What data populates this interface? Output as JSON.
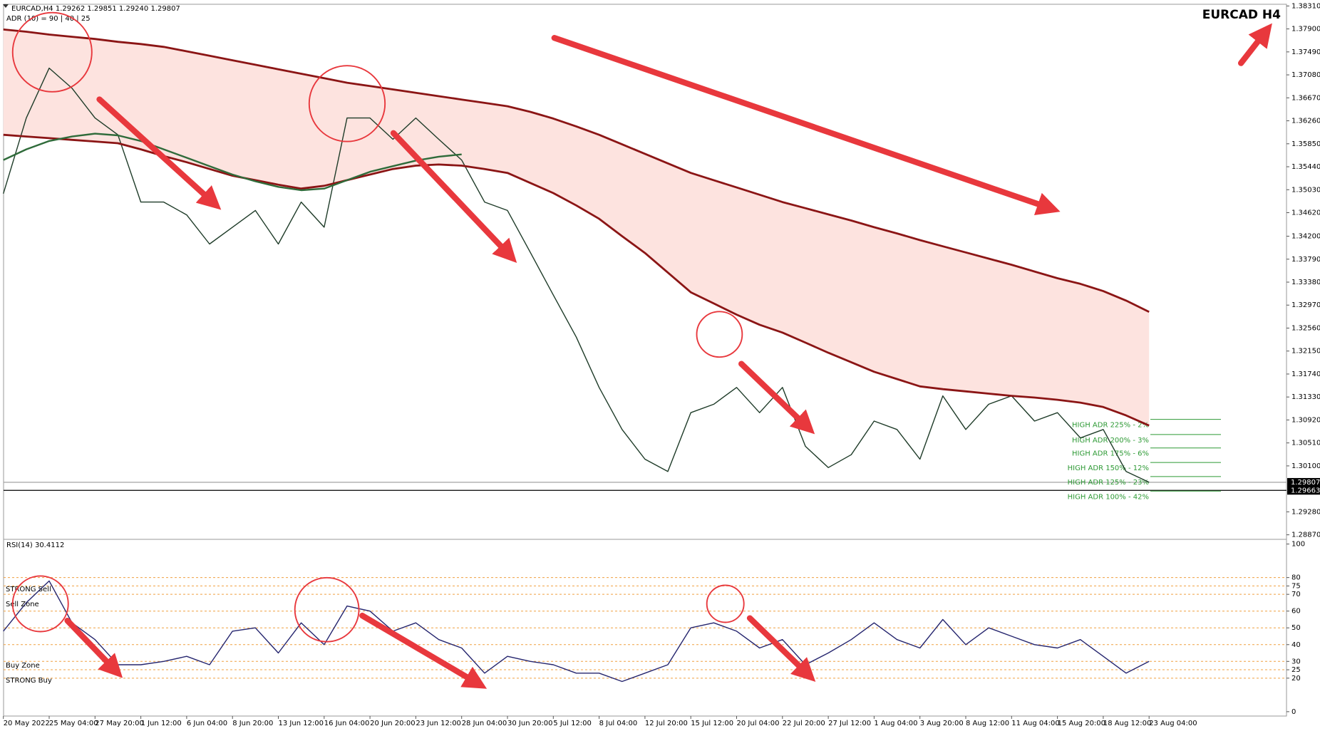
{
  "chart_data": [
    {
      "type": "line",
      "title": "EURCAD H4",
      "subtitle": "EURCAD,H4  1.29262 1.29851 1.29240 1.29807",
      "indicator_label": "ADR (10) = 90 | 40 | 25",
      "categories": [
        "20 May 2022",
        null,
        "25 May 04:00",
        null,
        "27 May 20:00",
        null,
        "1 Jun 12:00",
        null,
        "6 Jun 04:00",
        null,
        "8 Jun 20:00",
        null,
        "13 Jun 12:00",
        null,
        "16 Jun 04:00",
        null,
        "20 Jun 20:00",
        null,
        "23 Jun 12:00",
        null,
        "28 Jun 04:00",
        null,
        "30 Jun 20:00",
        null,
        "5 Jul 12:00",
        null,
        "8 Jul 04:00",
        null,
        "12 Jul 20:00",
        null,
        "15 Jul 12:00",
        null,
        "20 Jul 04:00",
        null,
        "22 Jul 20:00",
        null,
        "27 Jul 12:00",
        null,
        "1 Aug 04:00",
        null,
        "3 Aug 20:00",
        null,
        "8 Aug 12:00",
        null,
        "11 Aug 04:00",
        null,
        "15 Aug 20:00",
        null,
        "18 Aug 12:00",
        null,
        "23 Aug 04:00"
      ],
      "series": [
        {
          "color": "#1e3b28",
          "values": [
            1.3496,
            1.3631,
            1.372,
            1.3684,
            1.3631,
            1.3601,
            1.3481,
            1.3481,
            1.3458,
            1.3406,
            1.3436,
            1.3466,
            1.3406,
            1.3481,
            1.3436,
            1.3631,
            1.3631,
            1.3593,
            1.3631,
            1.3593,
            1.3556,
            1.3481,
            1.3466,
            1.3391,
            1.3315,
            1.324,
            1.315,
            1.3075,
            1.3022,
            1.3,
            1.3105,
            1.312,
            1.315,
            1.3105,
            1.315,
            1.3045,
            1.3007,
            1.303,
            1.309,
            1.3075,
            1.3022,
            1.3135,
            1.3075,
            1.312,
            1.3135,
            1.309,
            1.3105,
            1.306,
            1.3075,
            1.3,
            1.29807
          ]
        },
        {
          "color": "#8b1515",
          "values": [
            1.3789,
            1.3785,
            1.378,
            1.3776,
            1.3772,
            1.3767,
            1.3763,
            1.3758,
            1.375,
            1.3742,
            1.3734,
            1.3726,
            1.3718,
            1.371,
            1.3702,
            1.3694,
            1.3688,
            1.3682,
            1.3676,
            1.367,
            1.3664,
            1.3658,
            1.3652,
            1.3642,
            1.363,
            1.3616,
            1.3601,
            1.3584,
            1.3567,
            1.355,
            1.3533,
            1.352,
            1.3507,
            1.3494,
            1.3481,
            1.347,
            1.3459,
            1.3448,
            1.3436,
            1.3425,
            1.3413,
            1.3402,
            1.3391,
            1.338,
            1.3369,
            1.3357,
            1.3345,
            1.3335,
            1.3322,
            1.3305,
            1.3285
          ]
        },
        {
          "color": "#8b1515",
          "values": [
            1.3601,
            1.3598,
            1.3595,
            1.3592,
            1.3589,
            1.3586,
            1.3575,
            1.3563,
            1.3552,
            1.354,
            1.3528,
            1.352,
            1.3512,
            1.3505,
            1.351,
            1.352,
            1.353,
            1.354,
            1.3546,
            1.3548,
            1.3546,
            1.354,
            1.3533,
            1.3515,
            1.3497,
            1.3475,
            1.3451,
            1.342,
            1.339,
            1.3355,
            1.332,
            1.33,
            1.328,
            1.3262,
            1.3248,
            1.323,
            1.3212,
            1.3195,
            1.3178,
            1.3165,
            1.3152,
            1.3147,
            1.3143,
            1.3139,
            1.3135,
            1.3132,
            1.3128,
            1.3123,
            1.3115,
            1.31,
            1.3082
          ]
        },
        {
          "color": "#2f6b3a",
          "values": [
            1.3556,
            1.3575,
            1.359,
            1.3598,
            1.3603,
            1.36,
            1.359,
            1.3575,
            1.356,
            1.3545,
            1.353,
            1.3518,
            1.3508,
            1.3502,
            1.3505,
            1.352,
            1.3535,
            1.3545,
            1.3555,
            1.3562,
            1.3566,
            null,
            null,
            null,
            null,
            null,
            null,
            null,
            null,
            null,
            null,
            null,
            null,
            null,
            null,
            null,
            null,
            null,
            null,
            null,
            null,
            null,
            null,
            null,
            null,
            null,
            null,
            null,
            null,
            null,
            null
          ]
        }
      ],
      "shade": "#fde3df",
      "ylim": [
        1.2842,
        1.3834
      ],
      "yticks": [
        {
          "value": 1.3831,
          "label": "1.38310"
        },
        {
          "value": 1.379,
          "label": "1.37900"
        },
        {
          "value": 1.3749,
          "label": "1.37490"
        },
        {
          "value": 1.3708,
          "label": "1.37080"
        },
        {
          "value": 1.3667,
          "label": "1.36670"
        },
        {
          "value": 1.3626,
          "label": "1.36260"
        },
        {
          "value": 1.3585,
          "label": "1.35850"
        },
        {
          "value": 1.3544,
          "label": "1.35440"
        },
        {
          "value": 1.3503,
          "label": "1.35030"
        },
        {
          "value": 1.3462,
          "label": "1.34620"
        },
        {
          "value": 1.342,
          "label": "1.34200"
        },
        {
          "value": 1.3379,
          "label": "1.33790"
        },
        {
          "value": 1.3338,
          "label": "1.33380"
        },
        {
          "value": 1.3297,
          "label": "1.32970"
        },
        {
          "value": 1.3256,
          "label": "1.32560"
        },
        {
          "value": 1.3215,
          "label": "1.32150"
        },
        {
          "value": 1.3174,
          "label": "1.31740"
        },
        {
          "value": 1.3133,
          "label": "1.31330"
        },
        {
          "value": 1.3092,
          "label": "1.30920"
        },
        {
          "value": 1.3051,
          "label": "1.30510"
        },
        {
          "value": 1.301,
          "label": "1.30100"
        },
        {
          "value": 1.2928,
          "label": "1.29280"
        },
        {
          "value": 1.2887,
          "label": "1.28870"
        }
      ],
      "price_tags": [
        1.29807,
        1.29663
      ],
      "lines": [
        {
          "value": 1.29807,
          "color": "#9a9a9a"
        },
        {
          "value": 1.29663,
          "color": "#000000"
        }
      ],
      "adr_levels": [
        {
          "value": 1.3093,
          "label": "HIGH ADR 225% - 2%"
        },
        {
          "value": 1.3066,
          "label": "HIGH ADR 200% - 3%"
        },
        {
          "value": 1.3042,
          "label": "HIGH ADR 175% - 6%"
        },
        {
          "value": 1.3016,
          "label": "HIGH ADR 150% - 12%"
        },
        {
          "value": 1.2991,
          "label": "HIGH ADR 125% - 23%"
        },
        {
          "value": 1.2965,
          "label": "HIGH ADR 100% - 42%"
        }
      ]
    },
    {
      "type": "line",
      "title": "RSI(14) 30.4112",
      "series": [
        {
          "color": "#25256e",
          "values": [
            48,
            65,
            78,
            53,
            43,
            28,
            28,
            30,
            33,
            28,
            48,
            50,
            35,
            53,
            40,
            63,
            60,
            48,
            53,
            43,
            38,
            23,
            33,
            30,
            28,
            23,
            23,
            18,
            23,
            28,
            50,
            53,
            48,
            38,
            43,
            28,
            35,
            43,
            53,
            43,
            38,
            55,
            40,
            50,
            45,
            40,
            38,
            43,
            33,
            23,
            30
          ]
        }
      ],
      "ylim": [
        -2.6,
        102.8
      ],
      "yticks": [
        100,
        80,
        75,
        70,
        60,
        50,
        40,
        30,
        25,
        20,
        0
      ],
      "levels": [
        80,
        75,
        70,
        60,
        50,
        40,
        30,
        25,
        20
      ],
      "level_color": "#f0a040",
      "zone_labels": [
        "STRONG Sell",
        "Sell Zone",
        "Buy Zone",
        "STRONG Buy"
      ]
    }
  ]
}
